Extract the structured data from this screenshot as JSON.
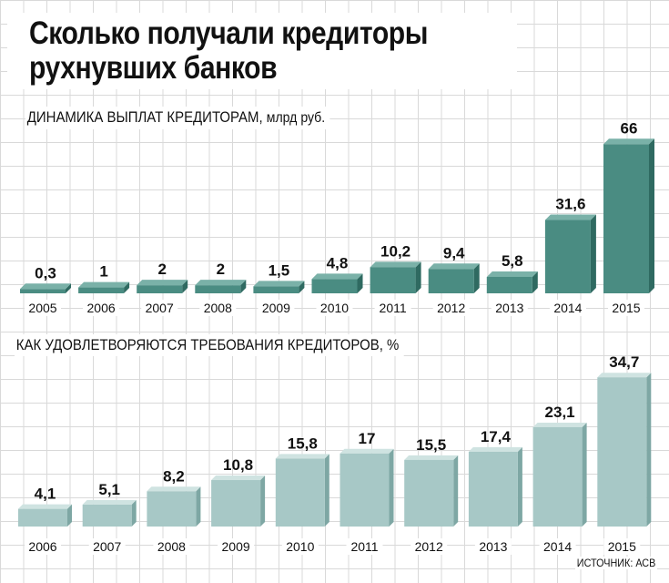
{
  "title_line1": "Сколько получали кредиторы",
  "title_line2": "рухнувших банков",
  "source": "ИСТОЧНИК: АСВ",
  "chart_data": [
    {
      "type": "bar",
      "title": "ДИНАМИКА ВЫПЛАТ КРЕДИТОРАМ,",
      "unit": "млрд руб.",
      "categories": [
        "2005",
        "2006",
        "2007",
        "2008",
        "2009",
        "2010",
        "2011",
        "2012",
        "2013",
        "2014",
        "2015"
      ],
      "values": [
        0.3,
        1,
        2,
        2,
        1.5,
        4.8,
        10.2,
        9.4,
        5.8,
        31.6,
        66
      ],
      "labels": [
        "0,3",
        "1",
        "2",
        "2",
        "1,5",
        "4,8",
        "10,2",
        "9,4",
        "5,8",
        "31,6",
        "66"
      ],
      "colors": {
        "front": "#4a8c82",
        "top": "#7ab1a8",
        "side": "#2f6a61"
      }
    },
    {
      "type": "bar",
      "title": "КАК УДОВЛЕТВОРЯЮТСЯ ТРЕБОВАНИЯ КРЕДИТОРОВ, %",
      "categories": [
        "2006",
        "2007",
        "2008",
        "2009",
        "2010",
        "2011",
        "2012",
        "2013",
        "2014",
        "2015"
      ],
      "values": [
        4.1,
        5.1,
        8.2,
        10.8,
        15.8,
        17,
        15.5,
        17.4,
        23.1,
        34.7
      ],
      "labels": [
        "4,1",
        "5,1",
        "8,2",
        "10,8",
        "15,8",
        "17",
        "15,5",
        "17,4",
        "23,1",
        "34,7"
      ],
      "colors": {
        "front": "#a7c8c6",
        "top": "#cfe3e1",
        "side": "#7ea7a4"
      }
    }
  ]
}
